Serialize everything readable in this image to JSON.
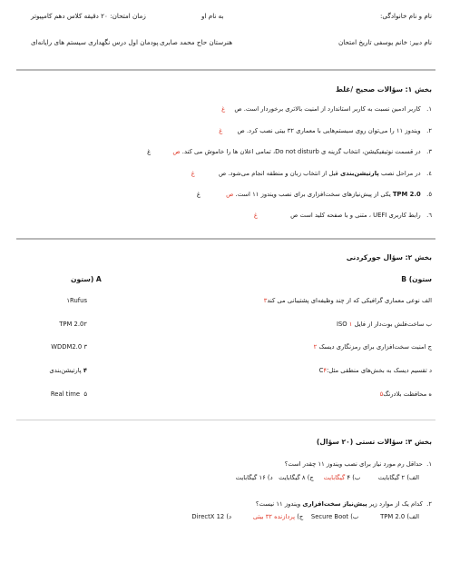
{
  "header": {
    "name_label": "نام و نام خانوادگی:",
    "date_label": "به نام او",
    "duration": "زمان امتحان: ۲۰ دقیقه  کلاس دهم کامپیوتر",
    "teacher": "نام دبیر: خانم یوسفی  تاریخ امتحان",
    "school": "هنرستان حاج محمد صابری",
    "course": "پودمان اول درس نگهداری سیستم های رایانه‌ای"
  },
  "section1": {
    "title": "بخش ۱: سؤالات صحیح /غلط",
    "items": [
      {
        "num": "۱.",
        "text": "کاربر ادمین نسبت به کاربر استاندارد از امنیت بالاتری برخوردار است. ص",
        "mark": "غ"
      },
      {
        "num": "۲.",
        "text": "ویندوز ۱۱ را می‌توان روی سیستم‌هایی با معماری ۳۲ بیتی نصب کرد. ص",
        "mark": "غ"
      },
      {
        "num": "۳.",
        "text": "در قسمت نوتیفیکیشن، انتخاب گزینه ی Do not disturb، تمامی اعلان ها را خاموش می کند.",
        "s": "ص",
        "mark": "غ"
      },
      {
        "num": "٤.",
        "text_pre": "در مراحل نصب ",
        "text_bold": "پارتیشن‌بندی",
        "text_post": " قبل از انتخاب زبان و منطقه انجام می‌شود.  ص",
        "mark": "غ"
      },
      {
        "num": "٥.",
        "lead": "TPM 2.0",
        "text": " یکی از پیش‌نیازهای سخت‌افزاری برای نصب ویندوز ۱۱ است.",
        "s": "ص",
        "mark": "غ"
      },
      {
        "num": "٦.",
        "text": "رابط کاربری UEFI ، متنی و با صفحه کلید است  ص",
        "mark": "غ"
      }
    ]
  },
  "section2": {
    "title": "بخش ۲: سؤال جورکردنی",
    "col_b": "ستون) B",
    "col_a": "ستون) A",
    "rows": [
      {
        "b": "الف نوعی معماری گرافیکی که از چند وظیفه‌ای پشتیبانی می کند",
        "bn": "۳",
        "a": "Rufus",
        "an": "۱"
      },
      {
        "b": "ب ساخت‌فلش بوت‌دار از فایل ISO",
        "bn": "۱",
        "a": "TPM 2.0",
        "an": "۲"
      },
      {
        "b": "ج امنیت سخت‌افزاری برای رمزنگاری دیسک",
        "bn": "۲",
        "a": "WDDM2.0",
        "an": "۳"
      },
      {
        "b": "د تقسیم دیسک به بخش‌های منطقی مثل:C",
        "bn": "۴",
        "a": "پارتیشن‌بندی",
        "an": "۴"
      },
      {
        "b": "ه محافظت بلادرنگ",
        "bn": "۵",
        "a": "Real time",
        "an": "۵"
      }
    ]
  },
  "section3": {
    "title": "بخش ۳: سؤالات تستی (۲۰ سؤال)",
    "q1": {
      "num": "۱.",
      "text": "حداقل رم مورد نیاز برای نصب ویندوز ۱۱ چقدر است؟",
      "opt_a": "الف) ۲ گیگابایت",
      "opt_b_pre": "ب) ۴ ",
      "opt_b_red": "گیگابایت",
      "opt_c": "ج) ۸ گیگابایت",
      "opt_d": "د) ۱۶ گیگابایت"
    },
    "q2": {
      "num": "۲.",
      "text_pre": "کدام یک از موارد زیر ",
      "text_bold": "پیش‌نیاز سخت‌افزاری",
      "text_post": " ویندوز ۱۱ نیست؟",
      "opt_a": "الف) TPM 2.0",
      "opt_b": "ب) Secure Boot",
      "opt_c_pre": "ج) ",
      "opt_c_red": "پردازنده ۳۲ بیتی",
      "opt_d": "د) DirectX 12"
    }
  },
  "colors": {
    "accent": "#e03a2a",
    "text": "#1a1a1a",
    "rule": "#b9b9b9"
  }
}
